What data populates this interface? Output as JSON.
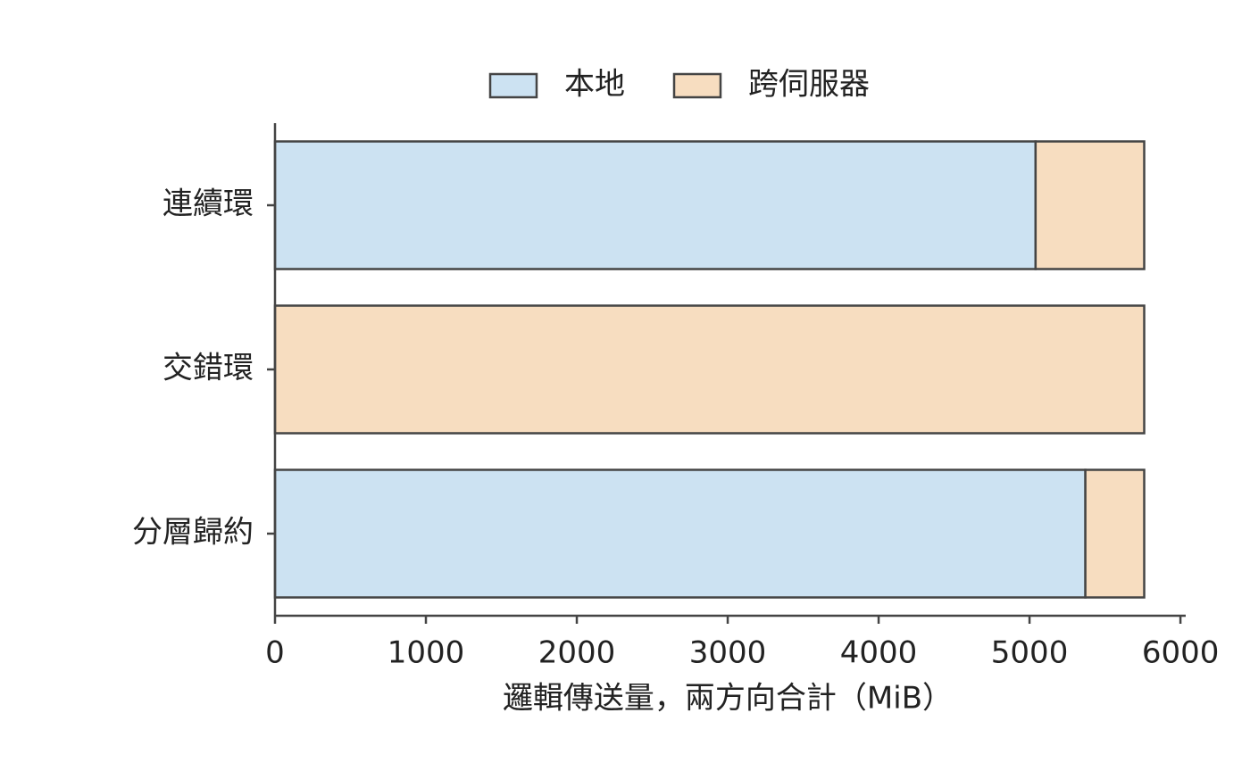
{
  "chart_data": {
    "type": "stacked-barh",
    "xlabel": "邏輯傳送量，兩方向合計（MiB）",
    "categories": [
      "連續環",
      "交錯環",
      "分層歸約"
    ],
    "series": [
      {
        "name": "本地",
        "color": "#cce2f2",
        "values": [
          5040,
          0,
          5370
        ]
      },
      {
        "name": "跨伺服器",
        "color": "#f7ddc0",
        "values": [
          720,
          5760,
          390
        ]
      }
    ],
    "xlim": [
      0,
      6035
    ],
    "xticks": [
      0,
      1000,
      2000,
      3000,
      4000,
      5000,
      6000
    ],
    "edge_color": "#444444",
    "legend": "top"
  }
}
